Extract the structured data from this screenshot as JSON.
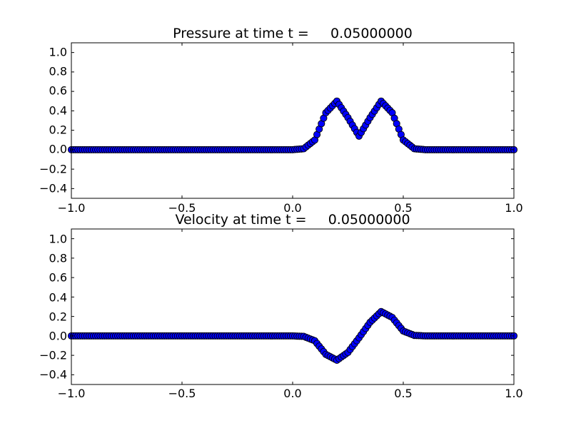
{
  "chart_data": [
    {
      "type": "scatter",
      "title": "Pressure at time t =     0.05000000",
      "xlabel": "",
      "ylabel": "",
      "xlim": [
        -1.0,
        1.0
      ],
      "ylim": [
        -0.5,
        1.1
      ],
      "xticks": [
        -1.0,
        -0.5,
        0.0,
        0.5,
        1.0
      ],
      "xtick_labels": [
        "−1.0",
        "−0.5",
        "0.0",
        "0.5",
        "1.0"
      ],
      "yticks": [
        -0.4,
        -0.2,
        0.0,
        0.2,
        0.4,
        0.6,
        0.8,
        1.0
      ],
      "ytick_labels": [
        "−0.4",
        "−0.2",
        "0.0",
        "0.2",
        "0.4",
        "0.6",
        "0.8",
        "1.0"
      ],
      "grid": false,
      "marker_color": "#0000ff",
      "series": [
        {
          "x": [
            -1.0,
            -0.9,
            -0.8,
            -0.7,
            -0.6,
            -0.5,
            -0.4,
            -0.3,
            -0.2,
            -0.1,
            0.0,
            0.05,
            0.1,
            0.15,
            0.2,
            0.25,
            0.3,
            0.35,
            0.4,
            0.45,
            0.5,
            0.55,
            0.6,
            0.7,
            0.8,
            0.9,
            1.0
          ],
          "y": [
            0.0,
            0.0,
            0.0,
            0.0,
            0.0,
            0.0,
            0.0,
            0.0,
            0.0,
            0.0,
            0.0,
            0.01,
            0.1,
            0.38,
            0.5,
            0.33,
            0.14,
            0.33,
            0.5,
            0.38,
            0.1,
            0.01,
            0.0,
            0.0,
            0.0,
            0.0,
            0.0
          ]
        }
      ]
    },
    {
      "type": "scatter",
      "title": "Velocity at time t =     0.05000000",
      "xlabel": "",
      "ylabel": "",
      "xlim": [
        -1.0,
        1.0
      ],
      "ylim": [
        -0.5,
        1.1
      ],
      "xticks": [
        -1.0,
        -0.5,
        0.0,
        0.5,
        1.0
      ],
      "xtick_labels": [
        "−1.0",
        "−0.5",
        "0.0",
        "0.5",
        "1.0"
      ],
      "yticks": [
        -0.4,
        -0.2,
        0.0,
        0.2,
        0.4,
        0.6,
        0.8,
        1.0
      ],
      "ytick_labels": [
        "−0.4",
        "−0.2",
        "0.0",
        "0.2",
        "0.4",
        "0.6",
        "0.8",
        "1.0"
      ],
      "grid": false,
      "marker_color": "#0000ff",
      "series": [
        {
          "x": [
            -1.0,
            -0.9,
            -0.8,
            -0.7,
            -0.6,
            -0.5,
            -0.4,
            -0.3,
            -0.2,
            -0.1,
            0.0,
            0.05,
            0.1,
            0.15,
            0.2,
            0.25,
            0.3,
            0.35,
            0.4,
            0.45,
            0.5,
            0.55,
            0.6,
            0.7,
            0.8,
            0.9,
            1.0
          ],
          "y": [
            0.0,
            0.0,
            0.0,
            0.0,
            0.0,
            0.0,
            0.0,
            0.0,
            0.0,
            0.0,
            0.0,
            -0.005,
            -0.05,
            -0.19,
            -0.25,
            -0.17,
            -0.02,
            0.14,
            0.25,
            0.19,
            0.05,
            0.005,
            0.0,
            0.0,
            0.0,
            0.0,
            0.0
          ]
        }
      ]
    }
  ]
}
